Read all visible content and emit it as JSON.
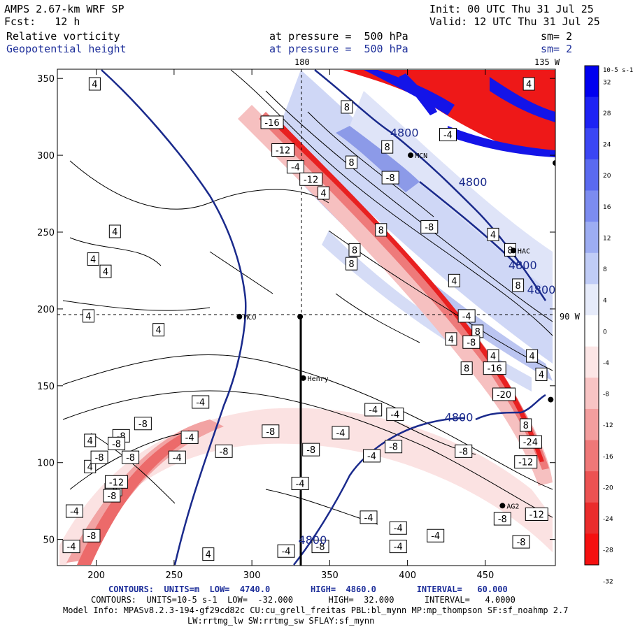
{
  "header": {
    "model_title": "AMPS 2.67-km WRF SP",
    "init": "Init: 00 UTC Thu 31 Jul 25",
    "forecast": "Fcst:   12 h",
    "valid": "Valid: 12 UTC Thu 31 Jul 25",
    "field1_name": "Relative vorticity",
    "field1_level": "at pressure =  500 hPa",
    "field1_sm": "sm= 2",
    "field2_name": "Geopotential height",
    "field2_level": "at pressure =  500 hPa",
    "field2_sm": "sm= 2"
  },
  "map": {
    "x_ticks": [
      "200",
      "250",
      "300",
      "350",
      "400",
      "450"
    ],
    "y_ticks": [
      "350",
      "300",
      "250",
      "200",
      "150",
      "100",
      "50"
    ],
    "lon_labels": {
      "top_center": "180",
      "top_right": "135 W",
      "right": "90 W"
    },
    "stations": [
      {
        "name": "MCO",
        "x": 292,
        "y": 195
      },
      {
        "name": "",
        "x": 331,
        "y": 195
      },
      {
        "name": "Henry",
        "x": 333,
        "y": 155
      },
      {
        "name": "HAC",
        "x": 468,
        "y": 238
      },
      {
        "name": "AG2",
        "x": 461,
        "y": 72
      },
      {
        "name": "MCN",
        "x": 402,
        "y": 300
      },
      {
        "name": "",
        "x": 492,
        "y": 141
      },
      {
        "name": "",
        "x": 495,
        "y": 295
      }
    ],
    "height_labels": [
      {
        "text": "4800",
        "x": 398,
        "y": 312
      },
      {
        "text": "4800",
        "x": 442,
        "y": 280
      },
      {
        "text": "4800",
        "x": 474,
        "y": 226
      },
      {
        "text": "4800",
        "x": 486,
        "y": 210
      },
      {
        "text": "4800",
        "x": 433,
        "y": 127
      },
      {
        "text": "4800",
        "x": 339,
        "y": 47
      }
    ],
    "vort_labels": [
      {
        "t": "4",
        "x": 199,
        "y": 346
      },
      {
        "t": "4",
        "x": 212,
        "y": 250
      },
      {
        "t": "4",
        "x": 198,
        "y": 232
      },
      {
        "t": "4",
        "x": 206,
        "y": 224
      },
      {
        "t": "4",
        "x": 195,
        "y": 195
      },
      {
        "t": "4",
        "x": 240,
        "y": 186
      },
      {
        "t": "4",
        "x": 196,
        "y": 114
      },
      {
        "t": "4",
        "x": 196,
        "y": 97
      },
      {
        "t": "4",
        "x": 272,
        "y": 40
      },
      {
        "t": "4",
        "x": 346,
        "y": 275
      },
      {
        "t": "4",
        "x": 455,
        "y": 248
      },
      {
        "t": "4",
        "x": 430,
        "y": 218
      },
      {
        "t": "4",
        "x": 428,
        "y": 180
      },
      {
        "t": "4",
        "x": 455,
        "y": 169
      },
      {
        "t": "4",
        "x": 480,
        "y": 169
      },
      {
        "t": "4",
        "x": 486,
        "y": 157
      },
      {
        "t": "4",
        "x": 478,
        "y": 346
      },
      {
        "t": "-4",
        "x": 328,
        "y": 292
      },
      {
        "t": "-4",
        "x": 426,
        "y": 313
      },
      {
        "t": "-4",
        "x": 438,
        "y": 195
      },
      {
        "t": "-4",
        "x": 267,
        "y": 139
      },
      {
        "t": "-4",
        "x": 378,
        "y": 134
      },
      {
        "t": "-4",
        "x": 392,
        "y": 131
      },
      {
        "t": "-4",
        "x": 260,
        "y": 116
      },
      {
        "t": "-4",
        "x": 357,
        "y": 119
      },
      {
        "t": "-4",
        "x": 377,
        "y": 104
      },
      {
        "t": "-4",
        "x": 252,
        "y": 103
      },
      {
        "t": "-4",
        "x": 331,
        "y": 86
      },
      {
        "t": "-4",
        "x": 186,
        "y": 68
      },
      {
        "t": "-4",
        "x": 375,
        "y": 64
      },
      {
        "t": "-4",
        "x": 394,
        "y": 57
      },
      {
        "t": "-4",
        "x": 418,
        "y": 52
      },
      {
        "t": "-4",
        "x": 184,
        "y": 45
      },
      {
        "t": "-4",
        "x": 322,
        "y": 42
      },
      {
        "t": "-4",
        "x": 394,
        "y": 45
      },
      {
        "t": "8",
        "x": 361,
        "y": 331
      },
      {
        "t": "8",
        "x": 387,
        "y": 305
      },
      {
        "t": "8",
        "x": 364,
        "y": 295
      },
      {
        "t": "8",
        "x": 383,
        "y": 251
      },
      {
        "t": "8",
        "x": 366,
        "y": 238
      },
      {
        "t": "8",
        "x": 364,
        "y": 229
      },
      {
        "t": "8",
        "x": 466,
        "y": 238
      },
      {
        "t": "8",
        "x": 471,
        "y": 215
      },
      {
        "t": "8",
        "x": 445,
        "y": 185
      },
      {
        "t": "8",
        "x": 438,
        "y": 161
      },
      {
        "t": "8",
        "x": 476,
        "y": 124
      },
      {
        "t": "-8",
        "x": 389,
        "y": 285
      },
      {
        "t": "-8",
        "x": 414,
        "y": 253
      },
      {
        "t": "-8",
        "x": 441,
        "y": 178
      },
      {
        "t": "-8",
        "x": 230,
        "y": 125
      },
      {
        "t": "-8",
        "x": 216,
        "y": 117
      },
      {
        "t": "-8",
        "x": 202,
        "y": 103
      },
      {
        "t": "-8",
        "x": 213,
        "y": 112
      },
      {
        "t": "-8",
        "x": 282,
        "y": 107
      },
      {
        "t": "-8",
        "x": 312,
        "y": 120
      },
      {
        "t": "-8",
        "x": 338,
        "y": 108
      },
      {
        "t": "-8",
        "x": 436,
        "y": 107
      },
      {
        "t": "-8",
        "x": 222,
        "y": 103
      },
      {
        "t": "-8",
        "x": 211,
        "y": 82
      },
      {
        "t": "-8",
        "x": 210,
        "y": 78
      },
      {
        "t": "-8",
        "x": 197,
        "y": 52
      },
      {
        "t": "-8",
        "x": 344,
        "y": 45
      },
      {
        "t": "-8",
        "x": 461,
        "y": 63
      },
      {
        "t": "-8",
        "x": 473,
        "y": 48
      },
      {
        "t": "-8",
        "x": 391,
        "y": 110
      },
      {
        "t": "-12",
        "x": 320,
        "y": 303
      },
      {
        "t": "-12",
        "x": 338,
        "y": 284
      },
      {
        "t": "-12",
        "x": 213,
        "y": 87
      },
      {
        "t": "-12",
        "x": 483,
        "y": 66
      },
      {
        "t": "-12",
        "x": 476,
        "y": 100
      },
      {
        "t": "-16",
        "x": 313,
        "y": 321
      },
      {
        "t": "-16",
        "x": 456,
        "y": 161
      },
      {
        "t": "-20",
        "x": 462,
        "y": 144
      },
      {
        "t": "-24",
        "x": 479,
        "y": 113
      }
    ]
  },
  "colorbar": {
    "unit": "10-5 s-1",
    "labels": [
      "32",
      "28",
      "24",
      "20",
      "16",
      "12",
      "8",
      "4",
      "0",
      "-4",
      "-8",
      "-12",
      "-16",
      "-20",
      "-24",
      "-28",
      "-32"
    ],
    "colors": [
      "#0000f0",
      "#1d22f4",
      "#3b46f4",
      "#5a6af0",
      "#7c8cf0",
      "#9dadf2",
      "#c0ccf6",
      "#e6ebfa",
      "#ffffff",
      "#fce6e6",
      "#f8c4c4",
      "#f39e9e",
      "#ef7878",
      "#ec5252",
      "#ea2c2c",
      "#f51010"
    ]
  },
  "footer": {
    "line1": "CONTOURS:  UNITS=m  LOW=  4740.0        HIGH=  4860.0        INTERVAL=   60.000",
    "line2": "CONTOURS:  UNITS=10-5 s-1  LOW=  -32.000       HIGH=  32.000      INTERVAL=   4.0000",
    "line3": "Model Info: MPASv8.2.3-194-gf29cd82c CU:cu_grell_freitas PBL:bl_mynn MP:mp_thompson SF:sf_noahmp 2.7",
    "line4": "LW:rrtmg_lw SW:rrtmg_sw SFLAY:sf_mynn"
  }
}
